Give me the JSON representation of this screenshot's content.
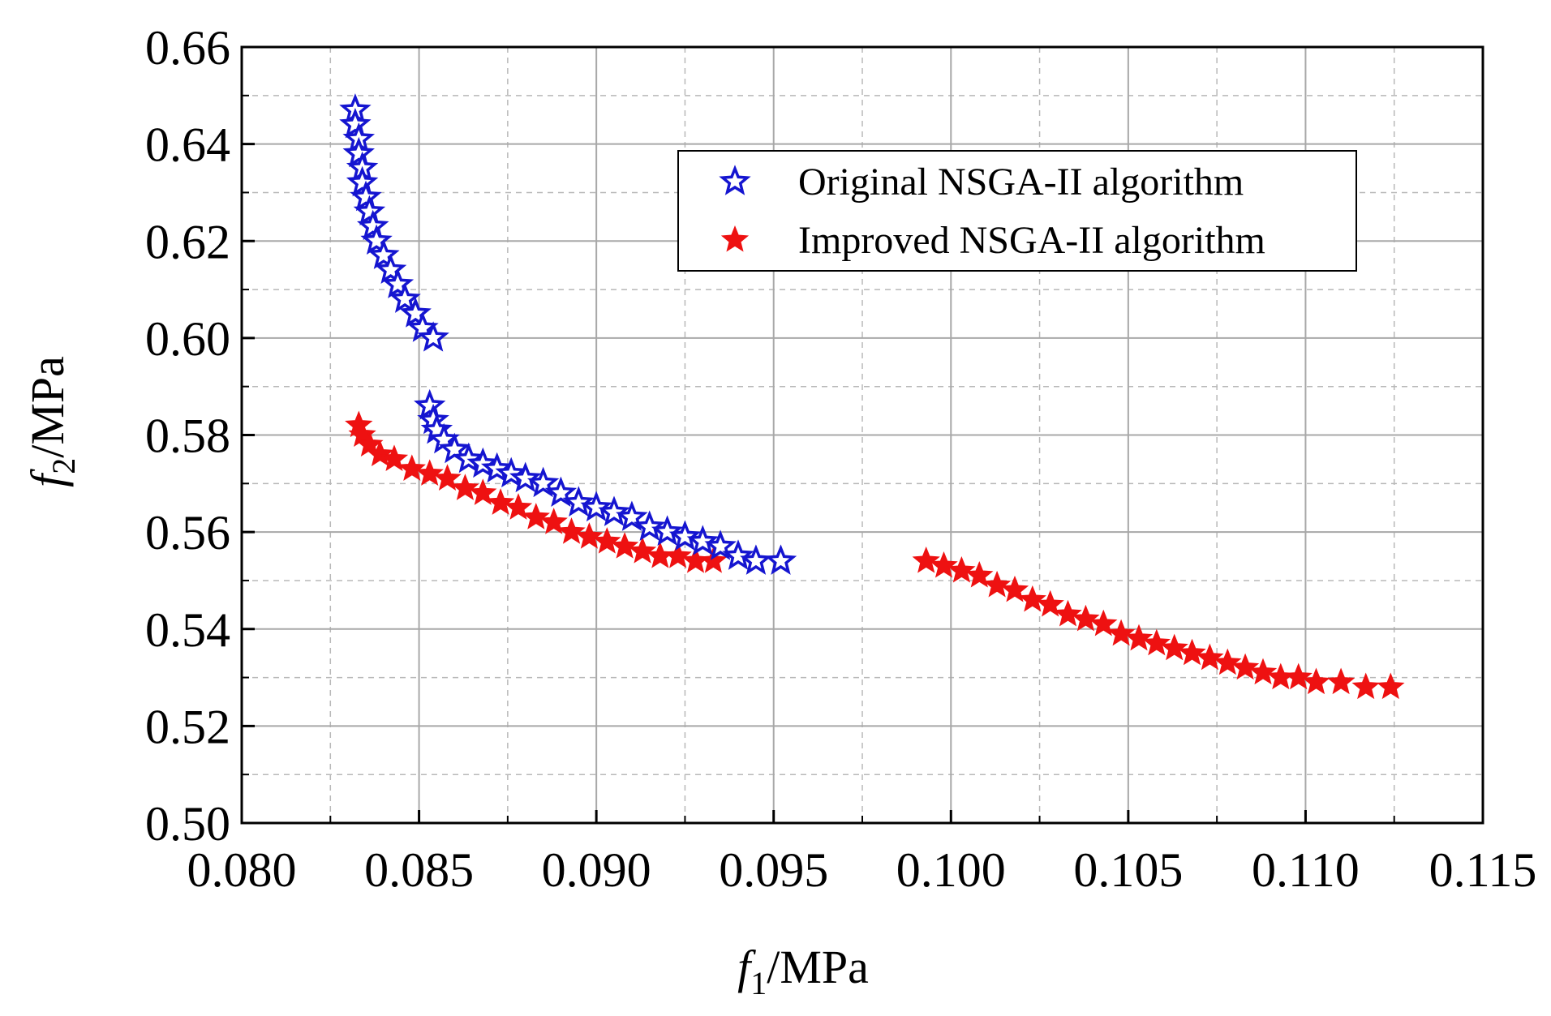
{
  "chart_data": {
    "type": "scatter",
    "title": "",
    "xlabel": {
      "symbol": "f",
      "subscript": "1",
      "unit": "/MPa"
    },
    "ylabel": {
      "symbol": "f",
      "subscript": "2",
      "unit": "/MPa"
    },
    "xlim": [
      0.08,
      0.115
    ],
    "ylim": [
      0.5,
      0.66
    ],
    "x_ticks": [
      "0.080",
      "0.085",
      "0.090",
      "0.095",
      "0.100",
      "0.105",
      "0.110",
      "0.115"
    ],
    "y_ticks": [
      "0.50",
      "0.52",
      "0.54",
      "0.56",
      "0.58",
      "0.60",
      "0.62",
      "0.64",
      "0.66"
    ],
    "grid": true,
    "legend_position": "top-right",
    "series": [
      {
        "name": "Original NSGA-II algorithm",
        "marker": "open-star",
        "color": "#1515d0",
        "points": [
          [
            0.0832,
            0.647
          ],
          [
            0.0832,
            0.644
          ],
          [
            0.0833,
            0.641
          ],
          [
            0.0833,
            0.638
          ],
          [
            0.0834,
            0.635
          ],
          [
            0.0834,
            0.632
          ],
          [
            0.0835,
            0.629
          ],
          [
            0.0836,
            0.626
          ],
          [
            0.0837,
            0.623
          ],
          [
            0.0838,
            0.62
          ],
          [
            0.084,
            0.617
          ],
          [
            0.0842,
            0.614
          ],
          [
            0.0844,
            0.611
          ],
          [
            0.0846,
            0.608
          ],
          [
            0.0849,
            0.605
          ],
          [
            0.0851,
            0.602
          ],
          [
            0.0854,
            0.6
          ],
          [
            0.0853,
            0.586
          ],
          [
            0.0854,
            0.583
          ],
          [
            0.0855,
            0.581
          ],
          [
            0.0857,
            0.579
          ],
          [
            0.086,
            0.577
          ],
          [
            0.0864,
            0.575
          ],
          [
            0.0868,
            0.574
          ],
          [
            0.0872,
            0.573
          ],
          [
            0.0876,
            0.572
          ],
          [
            0.088,
            0.571
          ],
          [
            0.0885,
            0.57
          ],
          [
            0.089,
            0.568
          ],
          [
            0.0895,
            0.566
          ],
          [
            0.09,
            0.565
          ],
          [
            0.0905,
            0.564
          ],
          [
            0.091,
            0.563
          ],
          [
            0.0915,
            0.561
          ],
          [
            0.092,
            0.56
          ],
          [
            0.0925,
            0.559
          ],
          [
            0.093,
            0.558
          ],
          [
            0.0935,
            0.557
          ],
          [
            0.094,
            0.555
          ],
          [
            0.0945,
            0.554
          ],
          [
            0.0952,
            0.554
          ]
        ]
      },
      {
        "name": "Improved NSGA-II algorithm",
        "marker": "filled-star",
        "color": "#ee1111",
        "points": [
          [
            0.0833,
            0.582
          ],
          [
            0.0834,
            0.58
          ],
          [
            0.0836,
            0.578
          ],
          [
            0.0839,
            0.576
          ],
          [
            0.0843,
            0.575
          ],
          [
            0.0848,
            0.573
          ],
          [
            0.0853,
            0.572
          ],
          [
            0.0858,
            0.571
          ],
          [
            0.0863,
            0.569
          ],
          [
            0.0868,
            0.568
          ],
          [
            0.0873,
            0.566
          ],
          [
            0.0878,
            0.565
          ],
          [
            0.0883,
            0.563
          ],
          [
            0.0888,
            0.562
          ],
          [
            0.0893,
            0.56
          ],
          [
            0.0898,
            0.559
          ],
          [
            0.0903,
            0.558
          ],
          [
            0.0908,
            0.557
          ],
          [
            0.0913,
            0.556
          ],
          [
            0.0918,
            0.555
          ],
          [
            0.0923,
            0.555
          ],
          [
            0.0928,
            0.554
          ],
          [
            0.0933,
            0.554
          ],
          [
            0.0993,
            0.554
          ],
          [
            0.0998,
            0.553
          ],
          [
            0.1003,
            0.552
          ],
          [
            0.1008,
            0.551
          ],
          [
            0.1013,
            0.549
          ],
          [
            0.1018,
            0.548
          ],
          [
            0.1023,
            0.546
          ],
          [
            0.1028,
            0.545
          ],
          [
            0.1033,
            0.543
          ],
          [
            0.1038,
            0.542
          ],
          [
            0.1043,
            0.541
          ],
          [
            0.1048,
            0.539
          ],
          [
            0.1053,
            0.538
          ],
          [
            0.1058,
            0.537
          ],
          [
            0.1063,
            0.536
          ],
          [
            0.1068,
            0.535
          ],
          [
            0.1073,
            0.534
          ],
          [
            0.1078,
            0.533
          ],
          [
            0.1083,
            0.532
          ],
          [
            0.1088,
            0.531
          ],
          [
            0.1093,
            0.53
          ],
          [
            0.1098,
            0.53
          ],
          [
            0.1103,
            0.529
          ],
          [
            0.111,
            0.529
          ],
          [
            0.1117,
            0.528
          ],
          [
            0.1124,
            0.528
          ]
        ]
      }
    ]
  }
}
